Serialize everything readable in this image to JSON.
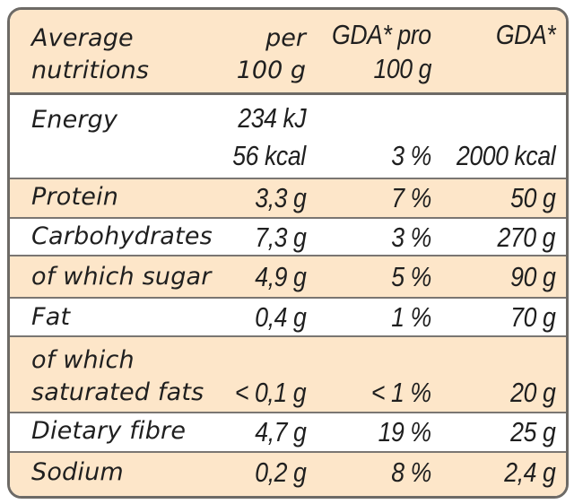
{
  "header": {
    "col1_line1": "Average",
    "col1_line2": "nutritions",
    "col2_line1": "per",
    "col2_line2": "100 g",
    "col3_line1": "GDA* pro",
    "col3_line2": "100 g",
    "col4_line1": "GDA*"
  },
  "energy": {
    "label": "Energy",
    "kj": "234 kJ",
    "kcal": "56 kcal",
    "pct": "3 %",
    "gda": "2000 kcal"
  },
  "rows": [
    {
      "label": "Protein",
      "per100": "3,3 g",
      "pct": "7 %",
      "gda": "50 g"
    },
    {
      "label": "Carbohydrates",
      "per100": "7,3 g",
      "pct": "3 %",
      "gda": "270 g"
    },
    {
      "label": "of which sugar",
      "per100": "4,9 g",
      "pct": "5 %",
      "gda": "90 g"
    },
    {
      "label": "Fat",
      "per100": "0,4 g",
      "pct": "1 %",
      "gda": "70 g"
    }
  ],
  "satfat": {
    "label_line1": "of which",
    "label_line2": "saturated fats",
    "per100": "< 0,1 g",
    "pct": "< 1 %",
    "gda": "20 g"
  },
  "rows2": [
    {
      "label": "Dietary fibre",
      "per100": "4,7 g",
      "pct": "19 %",
      "gda": "25 g"
    },
    {
      "label": "Sodium",
      "per100": "0,2 g",
      "pct": "8 %",
      "gda": "2,4 g"
    }
  ],
  "colors": {
    "shade": "#fde6c9",
    "border": "#6d6a66"
  }
}
